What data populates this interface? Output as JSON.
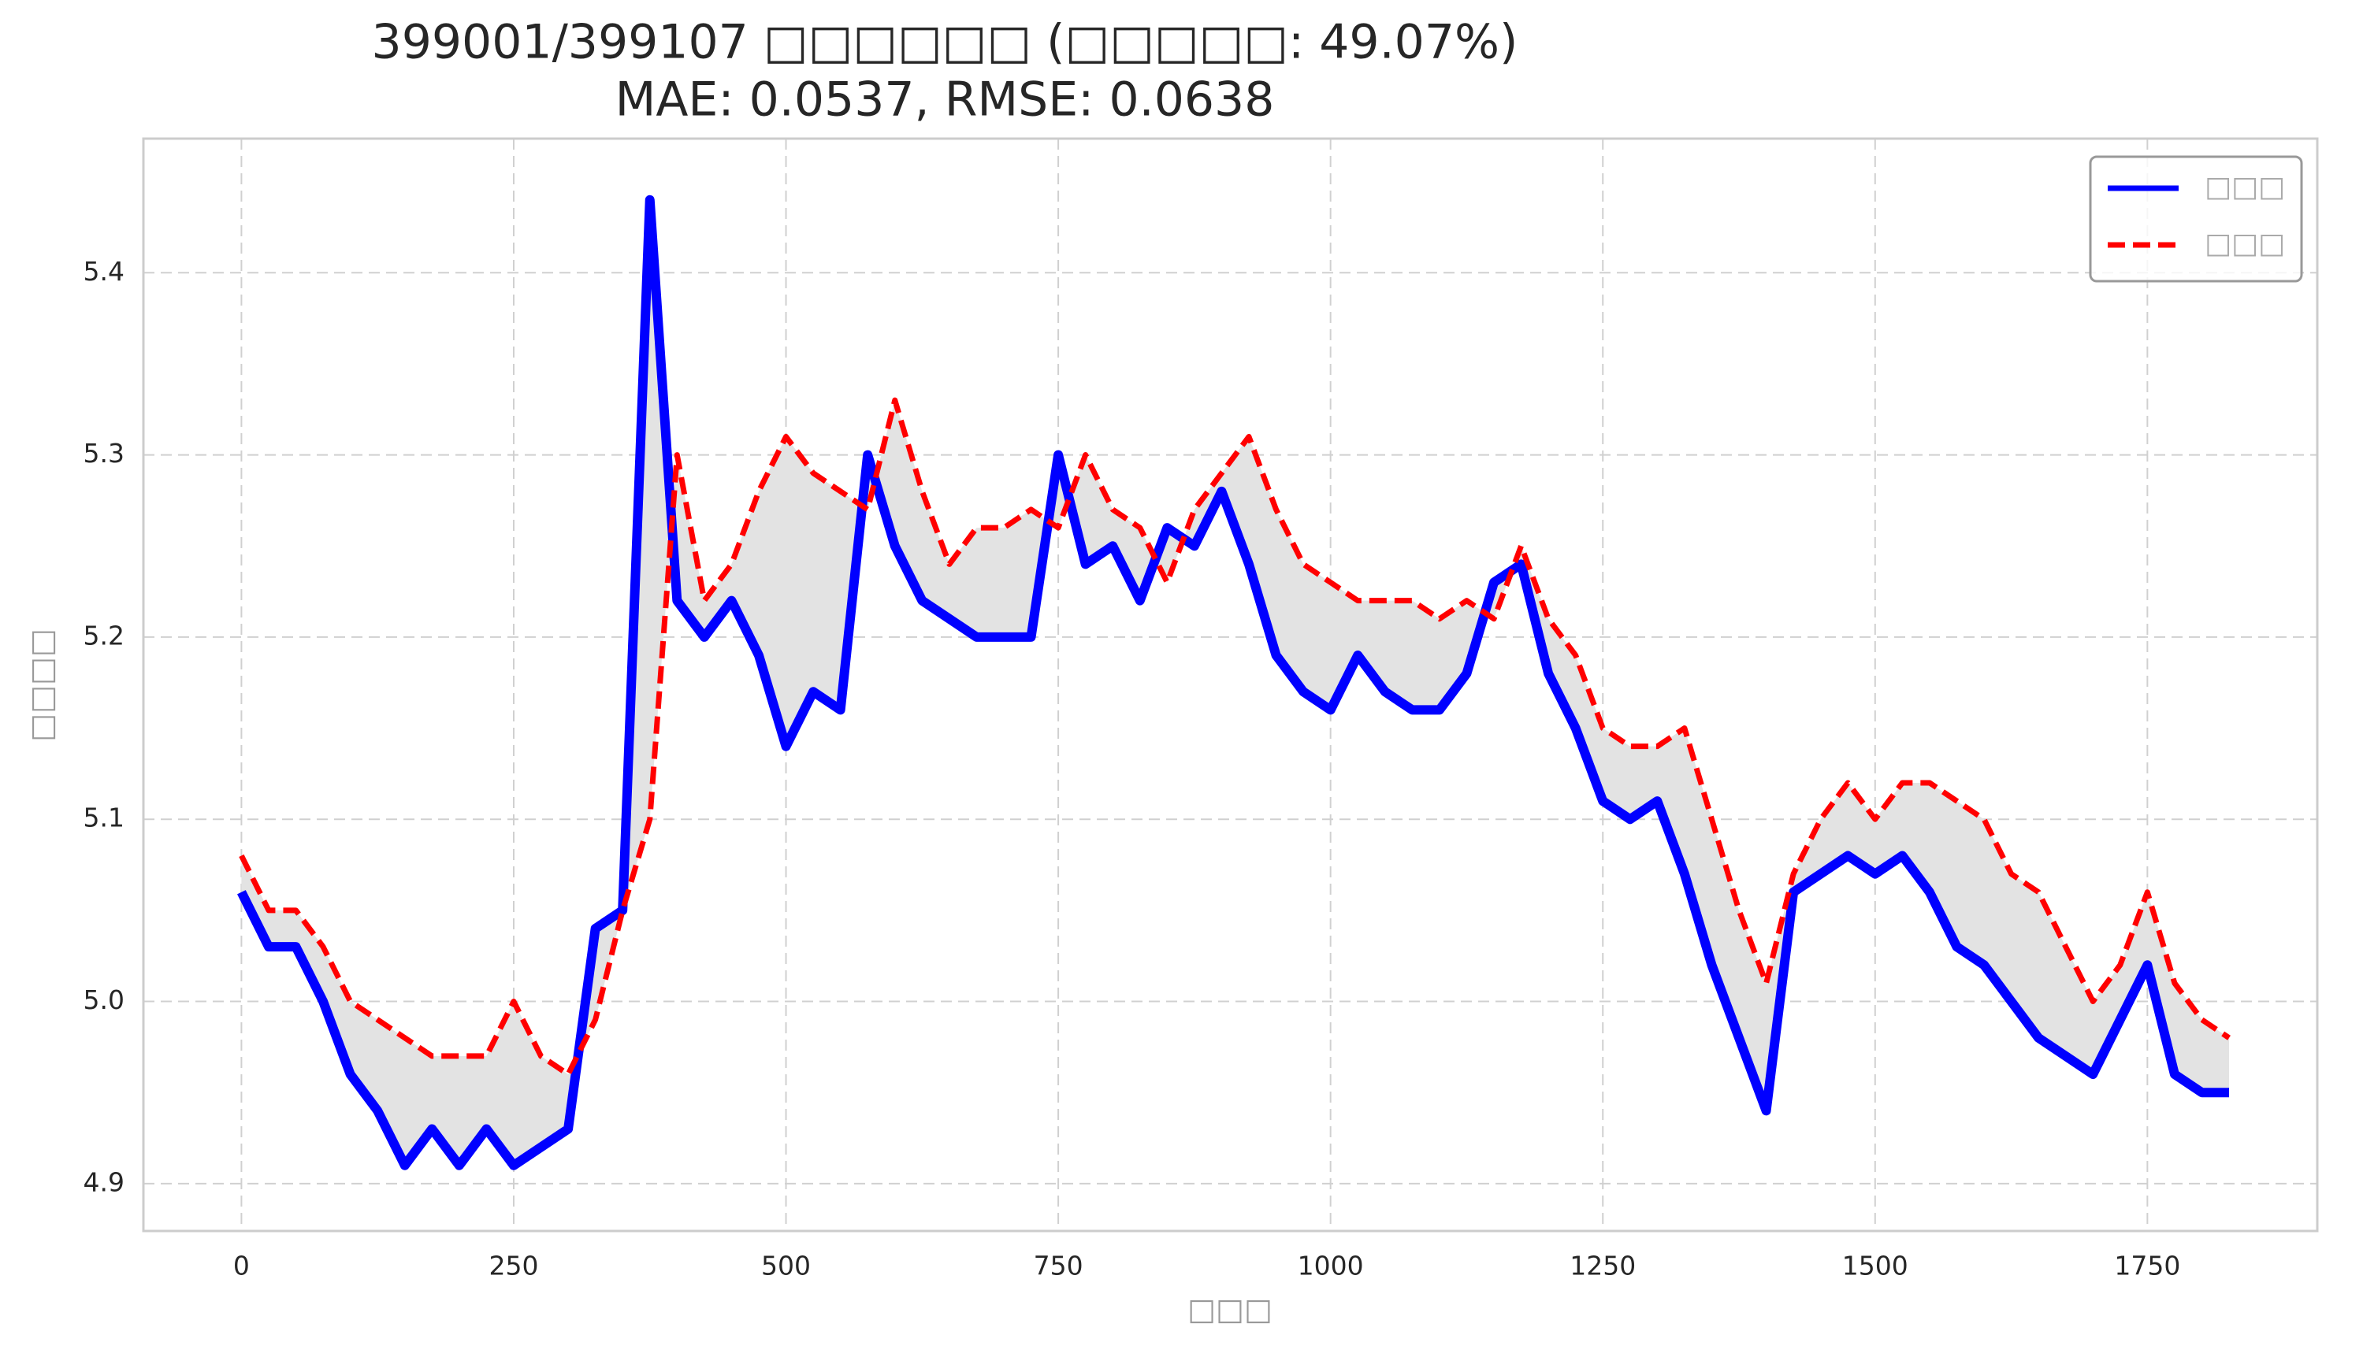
{
  "chart_data": {
    "type": "line",
    "title": "399001/399107 □□□□□□ (□□□□□: 49.07%)",
    "subtitle": "MAE: 0.0537, RMSE: 0.0638",
    "x_label": "□□□",
    "y_label": "□□□□",
    "x": [
      0,
      25,
      50,
      75,
      100,
      125,
      150,
      175,
      200,
      225,
      250,
      275,
      300,
      325,
      350,
      375,
      400,
      425,
      450,
      475,
      500,
      525,
      550,
      575,
      600,
      625,
      650,
      675,
      700,
      725,
      750,
      775,
      800,
      825,
      850,
      875,
      900,
      925,
      950,
      975,
      1000,
      1025,
      1050,
      1075,
      1100,
      1125,
      1150,
      1175,
      1200,
      1225,
      1250,
      1275,
      1300,
      1325,
      1350,
      1375,
      1400,
      1425,
      1450,
      1475,
      1500,
      1525,
      1550,
      1575,
      1600,
      1625,
      1650,
      1675,
      1700,
      1725,
      1750,
      1775,
      1800,
      1825
    ],
    "series": [
      {
        "name": "□□□",
        "color": "#0000ff",
        "style": "solid",
        "values": [
          5.06,
          5.03,
          5.03,
          5.0,
          4.96,
          4.94,
          4.91,
          4.93,
          4.91,
          4.93,
          4.91,
          4.92,
          4.93,
          5.04,
          5.05,
          5.44,
          5.22,
          5.2,
          5.22,
          5.19,
          5.14,
          5.17,
          5.16,
          5.3,
          5.25,
          5.22,
          5.21,
          5.2,
          5.2,
          5.2,
          5.3,
          5.24,
          5.25,
          5.22,
          5.26,
          5.25,
          5.28,
          5.24,
          5.19,
          5.17,
          5.16,
          5.19,
          5.17,
          5.16,
          5.16,
          5.18,
          5.23,
          5.24,
          5.18,
          5.15,
          5.11,
          5.1,
          5.11,
          5.07,
          5.02,
          4.98,
          4.94,
          5.06,
          5.07,
          5.08,
          5.07,
          5.08,
          5.06,
          5.03,
          5.02,
          5.0,
          4.98,
          4.97,
          4.96,
          4.99,
          5.02,
          4.96,
          4.95,
          4.95
        ]
      },
      {
        "name": "□□□",
        "color": "#ff0000",
        "style": "dashed",
        "values": [
          5.08,
          5.05,
          5.05,
          5.03,
          5.0,
          4.99,
          4.98,
          4.97,
          4.97,
          4.97,
          5.0,
          4.97,
          4.96,
          4.99,
          5.05,
          5.1,
          5.3,
          5.22,
          5.24,
          5.28,
          5.31,
          5.29,
          5.28,
          5.27,
          5.33,
          5.28,
          5.24,
          5.26,
          5.26,
          5.27,
          5.26,
          5.3,
          5.27,
          5.26,
          5.23,
          5.27,
          5.29,
          5.31,
          5.27,
          5.24,
          5.23,
          5.22,
          5.22,
          5.22,
          5.21,
          5.22,
          5.21,
          5.25,
          5.21,
          5.19,
          5.15,
          5.14,
          5.14,
          5.15,
          5.1,
          5.05,
          5.01,
          5.07,
          5.1,
          5.12,
          5.1,
          5.12,
          5.12,
          5.11,
          5.1,
          5.07,
          5.06,
          5.03,
          5.0,
          5.02,
          5.06,
          5.01,
          4.99,
          4.98
        ]
      }
    ],
    "fill_between_color": "#e3e3e3",
    "xlim": [
      -90,
      1906
    ],
    "ylim": [
      4.874,
      5.4736
    ],
    "xticks": [
      0,
      250,
      500,
      750,
      1000,
      1250,
      1500,
      1750
    ],
    "yticks": [
      4.9,
      {
        "value": 5,
        "label": "5.0"
      },
      5.1,
      5.2,
      5.3,
      5.4
    ],
    "grid": true,
    "legend": "upper right"
  }
}
